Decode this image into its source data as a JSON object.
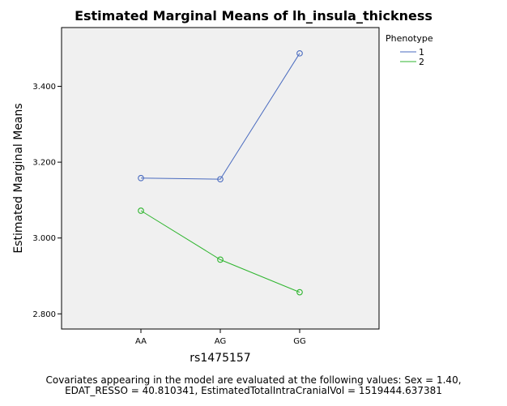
{
  "chart_data": {
    "type": "line",
    "title": "Estimated Marginal Means of lh_insula_thickness",
    "xlabel": "rs1475157",
    "ylabel": "Estimated Marginal Means",
    "categories": [
      "AA",
      "AG",
      "GG"
    ],
    "ylim": [
      2.76,
      3.555
    ],
    "yticks": [
      "2.800",
      "3.000",
      "3.200",
      "3.400"
    ],
    "legend_title": "Phenotype",
    "legend_position": "right",
    "grid": false,
    "series": [
      {
        "name": "1",
        "color": "#4a6bbf",
        "values": [
          3.158,
          3.155,
          3.487
        ]
      },
      {
        "name": "2",
        "color": "#2fb52f",
        "values": [
          3.072,
          2.943,
          2.857
        ]
      }
    ]
  },
  "footnote": {
    "line1": "Covariates appearing in the model are evaluated at the following values: Sex = 1.40,",
    "line2": "EDAT_RESSO = 40.810341, EstimatedTotalIntraCranialVol = 1519444.637381"
  },
  "colors": {
    "plot_background": "#f0f0f0"
  }
}
